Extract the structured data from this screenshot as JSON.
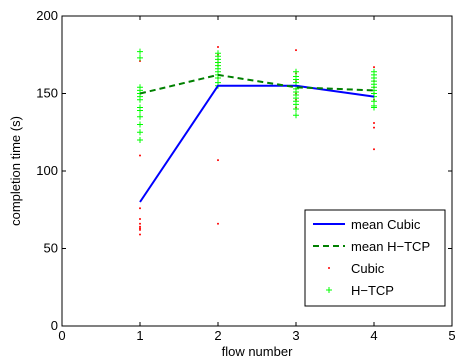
{
  "chart_data": {
    "type": "line",
    "xlabel": "flow number",
    "ylabel": "completion time (s)",
    "xlim": [
      0,
      5
    ],
    "ylim": [
      0,
      200
    ],
    "xticks": [
      "0",
      "1",
      "2",
      "3",
      "4",
      "5"
    ],
    "yticks": [
      "0",
      "50",
      "100",
      "150",
      "200"
    ],
    "grid": false,
    "legend_position": "bottom-right",
    "series": [
      {
        "name": "mean Cubic",
        "style": "solid-line",
        "color": "#0000ff",
        "x": [
          1,
          2,
          3,
          4
        ],
        "y": [
          80,
          155,
          155,
          148
        ]
      },
      {
        "name": "mean H−TCP",
        "style": "dashed-line",
        "color": "#008000",
        "x": [
          1,
          2,
          3,
          4
        ],
        "y": [
          150,
          162,
          154,
          152
        ]
      },
      {
        "name": "Cubic",
        "style": "dot-markers",
        "color": "#ff0000",
        "points": [
          [
            1,
            171
          ],
          [
            1,
            110
          ],
          [
            1,
            76
          ],
          [
            1,
            69
          ],
          [
            1,
            66
          ],
          [
            1,
            64
          ],
          [
            1,
            63
          ],
          [
            1,
            62
          ],
          [
            1,
            59
          ],
          [
            2,
            180
          ],
          [
            2,
            175
          ],
          [
            2,
            172
          ],
          [
            2,
            170
          ],
          [
            2,
            168
          ],
          [
            2,
            160
          ],
          [
            2,
            155
          ],
          [
            2,
            107
          ],
          [
            2,
            66
          ],
          [
            3,
            178
          ],
          [
            3,
            163
          ],
          [
            3,
            158
          ],
          [
            3,
            155
          ],
          [
            3,
            153
          ],
          [
            3,
            150
          ],
          [
            3,
            146
          ],
          [
            3,
            141
          ],
          [
            4,
            167
          ],
          [
            4,
            158
          ],
          [
            4,
            154
          ],
          [
            4,
            150
          ],
          [
            4,
            146
          ],
          [
            4,
            131
          ],
          [
            4,
            128
          ],
          [
            4,
            114
          ]
        ]
      },
      {
        "name": "H−TCP",
        "style": "plus-markers",
        "color": "#00ff00",
        "points": [
          [
            1,
            177
          ],
          [
            1,
            173
          ],
          [
            1,
            154
          ],
          [
            1,
            152
          ],
          [
            1,
            150
          ],
          [
            1,
            148
          ],
          [
            1,
            146
          ],
          [
            1,
            141
          ],
          [
            1,
            139
          ],
          [
            1,
            135
          ],
          [
            1,
            130
          ],
          [
            1,
            125
          ],
          [
            1,
            120
          ],
          [
            2,
            176
          ],
          [
            2,
            174
          ],
          [
            2,
            172
          ],
          [
            2,
            170
          ],
          [
            2,
            168
          ],
          [
            2,
            166
          ],
          [
            2,
            164
          ],
          [
            2,
            162
          ],
          [
            2,
            160
          ],
          [
            2,
            157
          ],
          [
            2,
            155
          ],
          [
            3,
            164
          ],
          [
            3,
            161
          ],
          [
            3,
            159
          ],
          [
            3,
            157
          ],
          [
            3,
            155
          ],
          [
            3,
            153
          ],
          [
            3,
            151
          ],
          [
            3,
            149
          ],
          [
            3,
            147
          ],
          [
            3,
            145
          ],
          [
            3,
            143
          ],
          [
            3,
            140
          ],
          [
            3,
            136
          ],
          [
            4,
            164
          ],
          [
            4,
            162
          ],
          [
            4,
            160
          ],
          [
            4,
            158
          ],
          [
            4,
            156
          ],
          [
            4,
            154
          ],
          [
            4,
            152
          ],
          [
            4,
            150
          ],
          [
            4,
            148
          ],
          [
            4,
            145
          ],
          [
            4,
            142
          ],
          [
            4,
            141
          ]
        ]
      }
    ]
  }
}
